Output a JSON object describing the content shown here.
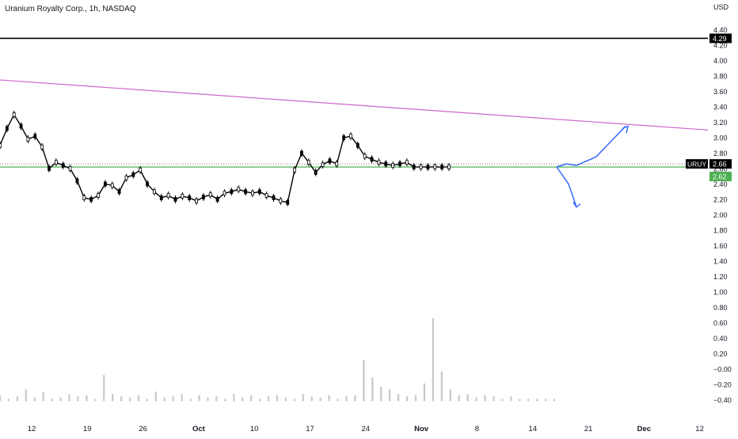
{
  "header": {
    "title": "Uranium Royalty Corp., 1h, NASDAQ"
  },
  "colors": {
    "text": "#131722",
    "grid_line": "#e6e6e6",
    "candle": "#000000",
    "volume": "#c8c8c8",
    "trendline": "#cc66cc",
    "horizontal_level": "#000000",
    "support_line": "#4caf50",
    "projection": "#2962ff",
    "label_uroy_bg": "#000000",
    "label_last_bg": "#4caf50"
  },
  "chart_data": {
    "type": "line",
    "title": "Uranium Royalty Corp., 1h, NASDAQ",
    "ylabel": "USD",
    "ylim": [
      -0.5,
      4.5
    ],
    "y_ticks": [
      "4.40",
      "4.20",
      "4.00",
      "3.80",
      "3.60",
      "3.40",
      "3.20",
      "3.00",
      "2.80",
      "2.60",
      "2.40",
      "2.20",
      "2.00",
      "1.80",
      "1.60",
      "1.40",
      "1.20",
      "1.00",
      "0.80",
      "0.60",
      "0.40",
      "0.20",
      "−0.00",
      "−0.20",
      "−0.40"
    ],
    "x_ticks": [
      "12",
      "19",
      "26",
      "Oct",
      "10",
      "17",
      "24",
      "Nov",
      "8",
      "14",
      "21",
      "Dec",
      "12"
    ],
    "price_labels": [
      {
        "text": "4.29",
        "value": 4.29
      },
      {
        "text": "URUY",
        "value": 2.66
      },
      {
        "text": "2.66",
        "value": 2.66
      },
      {
        "text": "2.62",
        "value": 2.62
      }
    ],
    "level_line": 4.29,
    "support_line": 2.62,
    "price_series": {
      "x": [
        0,
        2,
        4,
        6,
        8,
        10,
        12,
        14,
        16,
        18,
        20,
        22,
        24,
        26,
        28,
        30,
        32,
        34,
        36,
        38,
        40,
        42,
        44,
        46,
        48,
        50,
        52,
        54,
        56,
        58,
        60,
        62,
        64,
        66,
        68,
        70,
        72,
        74,
        76,
        78,
        80,
        82,
        84,
        86,
        88,
        90,
        92,
        94,
        96,
        98,
        100,
        102,
        104,
        106,
        108,
        110,
        112,
        114,
        116,
        118,
        120,
        122,
        124,
        126,
        128
      ],
      "y": [
        2.9,
        3.12,
        3.3,
        3.15,
        2.98,
        3.02,
        2.88,
        2.6,
        2.68,
        2.64,
        2.6,
        2.44,
        2.22,
        2.2,
        2.25,
        2.4,
        2.38,
        2.3,
        2.48,
        2.52,
        2.58,
        2.4,
        2.3,
        2.22,
        2.25,
        2.2,
        2.24,
        2.22,
        2.18,
        2.23,
        2.26,
        2.2,
        2.28,
        2.3,
        2.33,
        2.3,
        2.28,
        2.3,
        2.25,
        2.22,
        2.18,
        2.16,
        2.58,
        2.8,
        2.68,
        2.55,
        2.65,
        2.7,
        2.66,
        3.0,
        3.02,
        2.9,
        2.76,
        2.72,
        2.68,
        2.66,
        2.64,
        2.66,
        2.68,
        2.62,
        2.62,
        2.62,
        2.62,
        2.62,
        2.62
      ]
    },
    "volume": [
      0.05,
      0.02,
      0.04,
      0.1,
      0.03,
      0.08,
      0.02,
      0.03,
      0.06,
      0.04,
      0.05,
      0.02,
      0.22,
      0.06,
      0.04,
      0.03,
      0.05,
      0.02,
      0.08,
      0.03,
      0.04,
      0.06,
      0.02,
      0.05,
      0.03,
      0.04,
      0.02,
      0.06,
      0.03,
      0.05,
      0.02,
      0.04,
      0.05,
      0.03,
      0.02,
      0.06,
      0.04,
      0.03,
      0.05,
      0.02,
      0.04,
      0.05,
      0.35,
      0.2,
      0.12,
      0.1,
      0.06,
      0.04,
      0.05,
      0.15,
      0.7,
      0.25,
      0.1,
      0.05,
      0.06,
      0.03,
      0.05,
      0.04,
      0.02,
      0.04,
      0.02,
      0.02,
      0.02,
      0.02,
      0.02
    ],
    "trendline": {
      "x": [
        0,
        134
      ],
      "y": [
        3.75,
        3.1
      ]
    },
    "projection_up": {
      "x": [
        120,
        122,
        124,
        128,
        134
      ],
      "y": [
        2.62,
        2.66,
        2.64,
        2.75,
        3.15
      ]
    },
    "projection_down": {
      "x": [
        120,
        123,
        125
      ],
      "y": [
        2.62,
        2.4,
        2.1
      ]
    }
  }
}
